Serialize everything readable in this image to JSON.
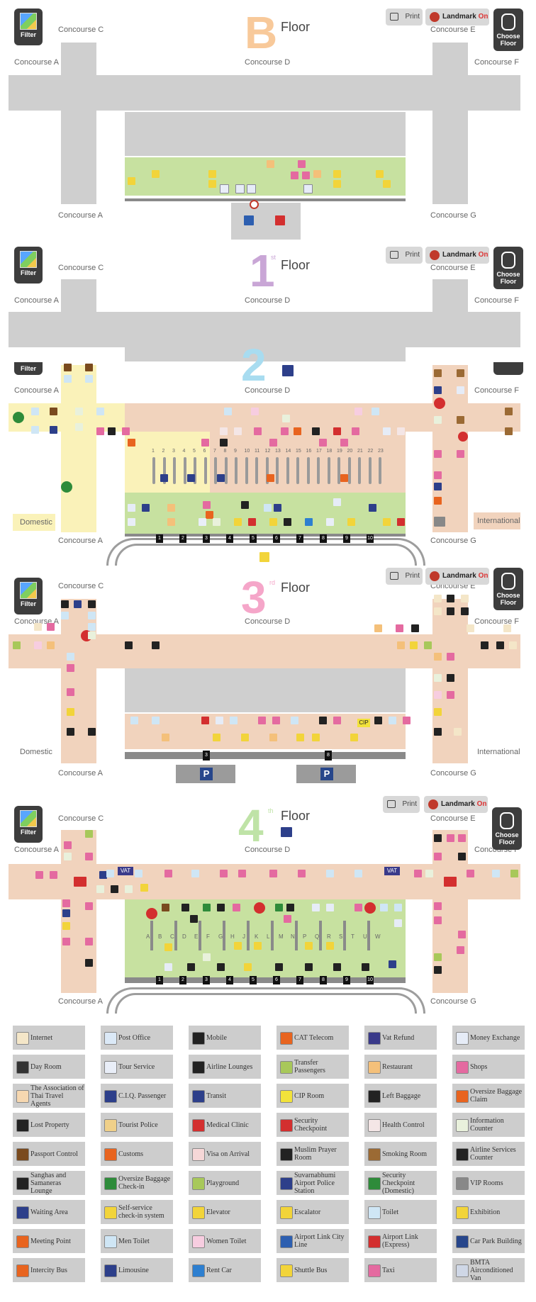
{
  "controls": {
    "filter_label": "Filter",
    "print_label": "Print",
    "landmark_label": "Landmark",
    "landmark_state": "On",
    "choose_floor_label": "Choose Floor"
  },
  "floors": [
    {
      "id": "B",
      "number": "B",
      "suffix": "",
      "floor_label": "Floor",
      "color": "#f8c99a",
      "labels": {
        "top_left": "Concourse C",
        "top_right": "Concourse E",
        "left": "Concourse A",
        "center": "Concourse D",
        "right": "Concourse F",
        "bottom_left": "Concourse A",
        "bottom_right": "Concourse G"
      }
    },
    {
      "id": "1",
      "number": "1",
      "suffix": "st",
      "floor_label": "Floor",
      "color": "#c9a6d6",
      "labels": {
        "top_left": "Concourse C",
        "top_right": "Concourse E",
        "left": "Concourse A",
        "center": "Concourse D",
        "right": "Concourse F"
      }
    },
    {
      "id": "2",
      "number": "2",
      "suffix": "",
      "floor_label": "",
      "color": "#a8dcf0",
      "labels": {
        "left": "Concourse A",
        "center": "Concourse D",
        "right": "Concourse F",
        "bottom_left": "Concourse A",
        "bottom_right": "Concourse G",
        "domestic": "Domestic",
        "international": "International"
      }
    },
    {
      "id": "3",
      "number": "3",
      "suffix": "rd",
      "floor_label": "Floor",
      "color": "#f5a6c9",
      "labels": {
        "top_left": "Concourse C",
        "top_right": "Concourse E",
        "left": "Concourse A",
        "center": "Concourse D",
        "right": "Concourse F",
        "bottom_left": "Concourse A",
        "bottom_right": "Concourse G",
        "domestic": "Domestic",
        "international": "International"
      }
    },
    {
      "id": "4",
      "number": "4",
      "suffix": "th",
      "floor_label": "Floor",
      "color": "#bfe3a7",
      "labels": {
        "top_left": "Concourse C",
        "top_right": "Concourse E",
        "left": "Concourse A",
        "center": "Concourse D",
        "right": "Concourse F",
        "bottom_left": "Concourse A",
        "bottom_right": "Concourse G"
      },
      "counters": [
        "A",
        "B",
        "C",
        "D",
        "E",
        "F",
        "G",
        "H",
        "J",
        "K",
        "L",
        "M",
        "N",
        "P",
        "Q",
        "R",
        "S",
        "T",
        "U",
        "W"
      ]
    }
  ],
  "floor2_gates": [
    "1",
    "2",
    "3",
    "4",
    "5",
    "6",
    "7",
    "8",
    "9",
    "10",
    "11",
    "12",
    "13",
    "14",
    "15",
    "16",
    "17",
    "18",
    "19",
    "20",
    "21",
    "22",
    "23"
  ],
  "floor2_doors": [
    "1",
    "2",
    "3",
    "4",
    "5",
    "6",
    "7",
    "8",
    "9",
    "10"
  ],
  "floor3_doors": [
    "3",
    "8"
  ],
  "floor4_doors": [
    "1",
    "2",
    "3",
    "4",
    "5",
    "6",
    "7",
    "8",
    "9",
    "10"
  ],
  "legend": [
    {
      "label": "Internet",
      "color": "#f4e6c8"
    },
    {
      "label": "Post Office",
      "color": "#dbe9f7"
    },
    {
      "label": "Mobile",
      "color": "#222222"
    },
    {
      "label": "CAT Telecom",
      "color": "#e8641f"
    },
    {
      "label": "Vat Refund",
      "color": "#3a3a8a"
    },
    {
      "label": "Money Exchange",
      "color": "#e6ecf7"
    },
    {
      "label": "Day Room",
      "color": "#333333"
    },
    {
      "label": "Tour Service",
      "color": "#e9eef8"
    },
    {
      "label": "Airline Lounges",
      "color": "#222222"
    },
    {
      "label": "Transfer Passengers",
      "color": "#a8c85a"
    },
    {
      "label": "Restaurant",
      "color": "#f4c07a"
    },
    {
      "label": "Shops",
      "color": "#e46aa0"
    },
    {
      "label": "The Association of Thai Travel Agents",
      "color": "#f6d7b0"
    },
    {
      "label": "C.I.Q. Passenger",
      "color": "#2d3f8a"
    },
    {
      "label": "Transit",
      "color": "#2d3f8a"
    },
    {
      "label": "CIP Room",
      "color": "#f2e23a"
    },
    {
      "label": "Left Baggage",
      "color": "#222222"
    },
    {
      "label": "Oversize Baggage Claim",
      "color": "#e8641f"
    },
    {
      "label": "Lost Property",
      "color": "#222222"
    },
    {
      "label": "Tourist Police",
      "color": "#f0d089"
    },
    {
      "label": "Medical Clinic",
      "color": "#d32f2f"
    },
    {
      "label": "Security Checkpoint",
      "color": "#d32f2f"
    },
    {
      "label": "Health Control",
      "color": "#f4e6e6"
    },
    {
      "label": "Information Counter",
      "color": "#e9f1dc"
    },
    {
      "label": "Passport Control",
      "color": "#7a4a1e"
    },
    {
      "label": "Customs",
      "color": "#e8641f"
    },
    {
      "label": "Visa on Arrival",
      "color": "#f6d7d7"
    },
    {
      "label": "Muslim Prayer Room",
      "color": "#222222"
    },
    {
      "label": "Smoking Room",
      "color": "#9b6a34"
    },
    {
      "label": "Airline Services Counter",
      "color": "#222222"
    },
    {
      "label": "Sanghas and Samaneras Lounge",
      "color": "#222222"
    },
    {
      "label": "Oversize Baggage Check-in",
      "color": "#2e8b3a"
    },
    {
      "label": "Playground",
      "color": "#a8c85a"
    },
    {
      "label": "Suvarnabhumi Airport Police Station",
      "color": "#2d3f8a"
    },
    {
      "label": "Security Checkpoint (Domestic)",
      "color": "#2e8b3a"
    },
    {
      "label": "VIP Rooms",
      "color": "#888888"
    },
    {
      "label": "Waiting Area",
      "color": "#2d3f8a"
    },
    {
      "label": "Self-service check-in system",
      "color": "#f2d43a"
    },
    {
      "label": "Elevator",
      "color": "#f2d43a"
    },
    {
      "label": "Escalator",
      "color": "#f2d43a"
    },
    {
      "label": "Toilet",
      "color": "#cfe6f5"
    },
    {
      "label": "Exhibition",
      "color": "#f2d43a"
    },
    {
      "label": "Meeting Point",
      "color": "#e8641f"
    },
    {
      "label": "Men Toilet",
      "color": "#cfe6f5"
    },
    {
      "label": "Women Toilet",
      "color": "#f7cde0"
    },
    {
      "label": "Airport Link City Line",
      "color": "#2d5fb0"
    },
    {
      "label": "Airport Link (Express)",
      "color": "#d32f2f"
    },
    {
      "label": "Car Park Building",
      "color": "#27468b"
    },
    {
      "label": "Intercity Bus",
      "color": "#e8641f"
    },
    {
      "label": "Limousine",
      "color": "#2d3f8a"
    },
    {
      "label": "Rent Car",
      "color": "#2d7fd0"
    },
    {
      "label": "Shuttle Bus",
      "color": "#f2d43a"
    },
    {
      "label": "Taxi",
      "color": "#e46aa0"
    },
    {
      "label": "BMTA Airconditioned Van",
      "color": "#cfd7e6"
    }
  ]
}
